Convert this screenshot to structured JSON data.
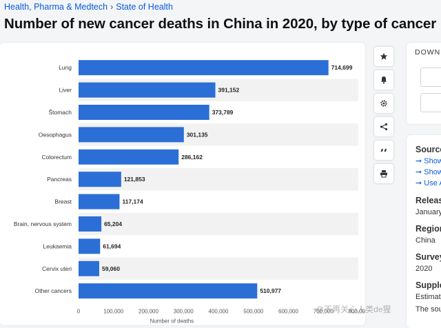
{
  "breadcrumb": {
    "item1": "Health, Pharma & Medtech",
    "separator": "›",
    "item2": "State of Health"
  },
  "page_title": "Number of new cancer deaths in China in 2020, by type of cancer",
  "toolbar": {
    "icons": [
      "star-icon",
      "bell-icon",
      "gear-icon",
      "share-icon",
      "quote-icon",
      "print-icon"
    ]
  },
  "download": {
    "label": "DOWNL"
  },
  "side": {
    "source_heading": "Source",
    "links": [
      "Show",
      "Show",
      "Use A"
    ],
    "release_heading": "Releas",
    "release_value": "January",
    "region_heading": "Region",
    "region_value": "China",
    "survey_heading": "Survey",
    "survey_value": "2020",
    "supplementary_heading": "Supple",
    "supplementary_value1": "Estimate",
    "supplementary_value2": "The sou"
  },
  "watermark": "@不再关心人类de猩",
  "colors": {
    "bar": "#2b6fd6",
    "stripe": "#f2f2f2",
    "link": "#0a5bd8"
  },
  "chart_data": {
    "type": "bar",
    "orientation": "horizontal",
    "categories": [
      "Lung",
      "Liver",
      "Stomach",
      "Oesophagus",
      "Colorectum",
      "Pancreas",
      "Breast",
      "Brain, nervous system",
      "Leukaemia",
      "Cervix uteri",
      "Other cancers"
    ],
    "category_labels": [
      "Lung",
      "Liver",
      "Ŝtomach",
      "Oesophagus",
      "Colorectum",
      "Pancreas",
      "Breast",
      "Brain, nervous system",
      "Leukaemia",
      "Cervix uteri",
      "Other cancers"
    ],
    "values": [
      714699,
      391152,
      373789,
      301135,
      286162,
      121853,
      117174,
      65204,
      61694,
      59060,
      510977
    ],
    "value_labels": [
      "714,699",
      "391,152",
      "373,789",
      "301,135",
      "286,162",
      "121,853",
      "117,174",
      "65,204",
      "61,694",
      "59,060",
      "510,977"
    ],
    "xlim": [
      0,
      800000
    ],
    "xticks": [
      0,
      100000,
      200000,
      300000,
      400000,
      500000,
      600000,
      700000,
      800000
    ],
    "xtick_labels": [
      "0",
      "100,000",
      "200,000",
      "300,000",
      "400,000",
      "500,000",
      "600,000",
      "700,000",
      "800,000"
    ],
    "xlabel": "Number of deaths",
    "grid": true
  }
}
